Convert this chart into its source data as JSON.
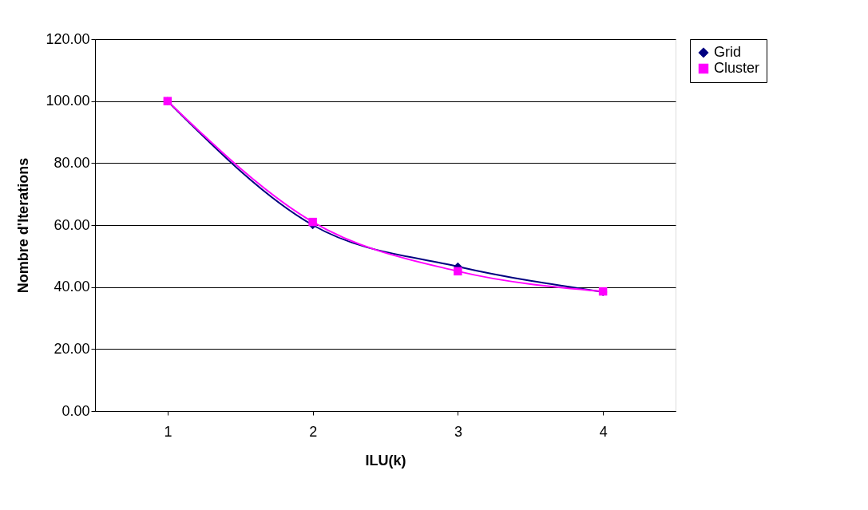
{
  "chart_data": {
    "type": "line",
    "xlabel": "ILU(k)",
    "ylabel": "Nombre d'Iterations",
    "categories": [
      "1",
      "2",
      "3",
      "4"
    ],
    "series": [
      {
        "name": "Grid",
        "color": "#000080",
        "marker": "diamond",
        "values": [
          100,
          60,
          46.6,
          38.4
        ]
      },
      {
        "name": "Cluster",
        "color": "#ff00ff",
        "marker": "square",
        "values": [
          100,
          61,
          45.1,
          38.6
        ]
      }
    ],
    "ylim": [
      0,
      120
    ],
    "yticks": [
      {
        "value": 0,
        "label": "0.00"
      },
      {
        "value": 20,
        "label": "20.00"
      },
      {
        "value": 40,
        "label": "40.00"
      },
      {
        "value": 60,
        "label": "60.00"
      },
      {
        "value": 80,
        "label": "80.00"
      },
      {
        "value": 100,
        "label": "100.00"
      },
      {
        "value": 120,
        "label": "120.00"
      }
    ],
    "grid": "y",
    "legend": "right"
  }
}
